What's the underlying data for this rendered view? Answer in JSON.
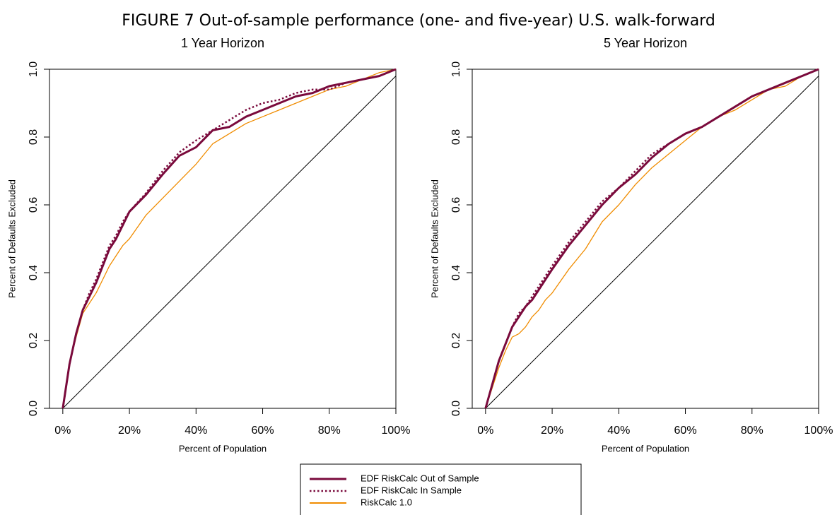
{
  "title": "FIGURE 7    Out-of-sample performance (one- and five-year) U.S. walk-forward",
  "chart_data": [
    {
      "type": "line",
      "title": "1 Year Horizon",
      "x_label": "Percent of Population",
      "y_label": "Percent of Defaults Excluded",
      "x": [
        0,
        2,
        4,
        6,
        8,
        10,
        12,
        14,
        16,
        18,
        20,
        25,
        30,
        35,
        40,
        45,
        50,
        55,
        60,
        65,
        70,
        75,
        80,
        85,
        90,
        95,
        100
      ],
      "series": [
        {
          "name": "EDF RiskCalc Out of Sample",
          "color": "#7a0a3c",
          "style": "solid",
          "width": 3,
          "values": [
            0,
            0.13,
            0.22,
            0.29,
            0.33,
            0.37,
            0.42,
            0.47,
            0.5,
            0.54,
            0.58,
            0.63,
            0.69,
            0.745,
            0.77,
            0.82,
            0.83,
            0.86,
            0.88,
            0.9,
            0.92,
            0.93,
            0.95,
            0.96,
            0.97,
            0.98,
            1.0
          ]
        },
        {
          "name": "EDF RiskCalc In Sample",
          "color": "#7a0a3c",
          "style": "dotted",
          "width": 2.5,
          "values": [
            0,
            0.13,
            0.22,
            0.29,
            0.34,
            0.38,
            0.43,
            0.48,
            0.51,
            0.55,
            0.58,
            0.635,
            0.7,
            0.755,
            0.79,
            0.82,
            0.85,
            0.88,
            0.9,
            0.91,
            0.93,
            0.94,
            0.94,
            0.96,
            0.97,
            0.98,
            1.0
          ]
        },
        {
          "name": "RiskCalc 1.0",
          "color": "#f08c00",
          "style": "solid",
          "width": 1.3,
          "values": [
            0,
            0.13,
            0.21,
            0.28,
            0.31,
            0.34,
            0.38,
            0.42,
            0.45,
            0.48,
            0.5,
            0.57,
            0.62,
            0.67,
            0.72,
            0.78,
            0.81,
            0.84,
            0.86,
            0.88,
            0.9,
            0.92,
            0.94,
            0.95,
            0.97,
            0.99,
            1.0
          ]
        }
      ],
      "reference_line": {
        "x": [
          0,
          100
        ],
        "values": [
          0,
          0.98
        ],
        "color": "#000000"
      },
      "xlim": [
        -4,
        100
      ],
      "ylim": [
        0,
        1
      ],
      "xticks": [
        {
          "value": 0,
          "label": "0%"
        },
        {
          "value": 20,
          "label": "20%"
        },
        {
          "value": 40,
          "label": "40%"
        },
        {
          "value": 60,
          "label": "60%"
        },
        {
          "value": 80,
          "label": "80%"
        },
        {
          "value": 100,
          "label": "100%"
        }
      ],
      "yticks": [
        {
          "value": 0,
          "label": "0.0"
        },
        0.2,
        0.4,
        0.6,
        0.8,
        {
          "value": 1,
          "label": "1.0"
        }
      ]
    },
    {
      "type": "line",
      "title": "5 Year Horizon",
      "x_label": "Percent of Population",
      "y_label": "Percent of Defaults Excluded",
      "x": [
        0,
        2,
        4,
        6,
        8,
        10,
        12,
        14,
        16,
        18,
        20,
        25,
        30,
        35,
        40,
        45,
        50,
        55,
        60,
        65,
        70,
        75,
        80,
        85,
        90,
        95,
        100
      ],
      "series": [
        {
          "name": "EDF RiskCalc Out of Sample",
          "color": "#7a0a3c",
          "style": "solid",
          "width": 3,
          "values": [
            0,
            0.07,
            0.14,
            0.19,
            0.24,
            0.27,
            0.3,
            0.32,
            0.35,
            0.38,
            0.41,
            0.48,
            0.54,
            0.6,
            0.65,
            0.69,
            0.74,
            0.78,
            0.81,
            0.83,
            0.86,
            0.89,
            0.92,
            0.94,
            0.96,
            0.98,
            1.0
          ]
        },
        {
          "name": "EDF RiskCalc In Sample",
          "color": "#7a0a3c",
          "style": "dotted",
          "width": 2.5,
          "values": [
            0,
            0.07,
            0.14,
            0.19,
            0.24,
            0.28,
            0.3,
            0.33,
            0.36,
            0.39,
            0.42,
            0.49,
            0.55,
            0.61,
            0.65,
            0.7,
            0.75,
            0.78,
            0.81,
            0.83,
            0.86,
            0.89,
            0.92,
            0.94,
            0.96,
            0.98,
            1.0
          ]
        },
        {
          "name": "RiskCalc 1.0",
          "color": "#f08c00",
          "style": "solid",
          "width": 1.3,
          "values": [
            0,
            0.06,
            0.12,
            0.17,
            0.21,
            0.22,
            0.24,
            0.27,
            0.29,
            0.32,
            0.34,
            0.41,
            0.47,
            0.55,
            0.6,
            0.66,
            0.71,
            0.75,
            0.79,
            0.83,
            0.86,
            0.88,
            0.91,
            0.94,
            0.95,
            0.98,
            1.0
          ]
        }
      ],
      "reference_line": {
        "x": [
          0,
          100
        ],
        "values": [
          0,
          0.98
        ],
        "color": "#000000"
      },
      "xlim": [
        -4,
        100
      ],
      "ylim": [
        0,
        1
      ],
      "xticks": [
        {
          "value": 0,
          "label": "0%"
        },
        {
          "value": 20,
          "label": "20%"
        },
        {
          "value": 40,
          "label": "40%"
        },
        {
          "value": 60,
          "label": "60%"
        },
        {
          "value": 80,
          "label": "80%"
        },
        {
          "value": 100,
          "label": "100%"
        }
      ],
      "yticks": [
        {
          "value": 0,
          "label": "0.0"
        },
        0.2,
        0.4,
        0.6,
        0.8,
        {
          "value": 1,
          "label": "1.0"
        }
      ]
    }
  ]
}
